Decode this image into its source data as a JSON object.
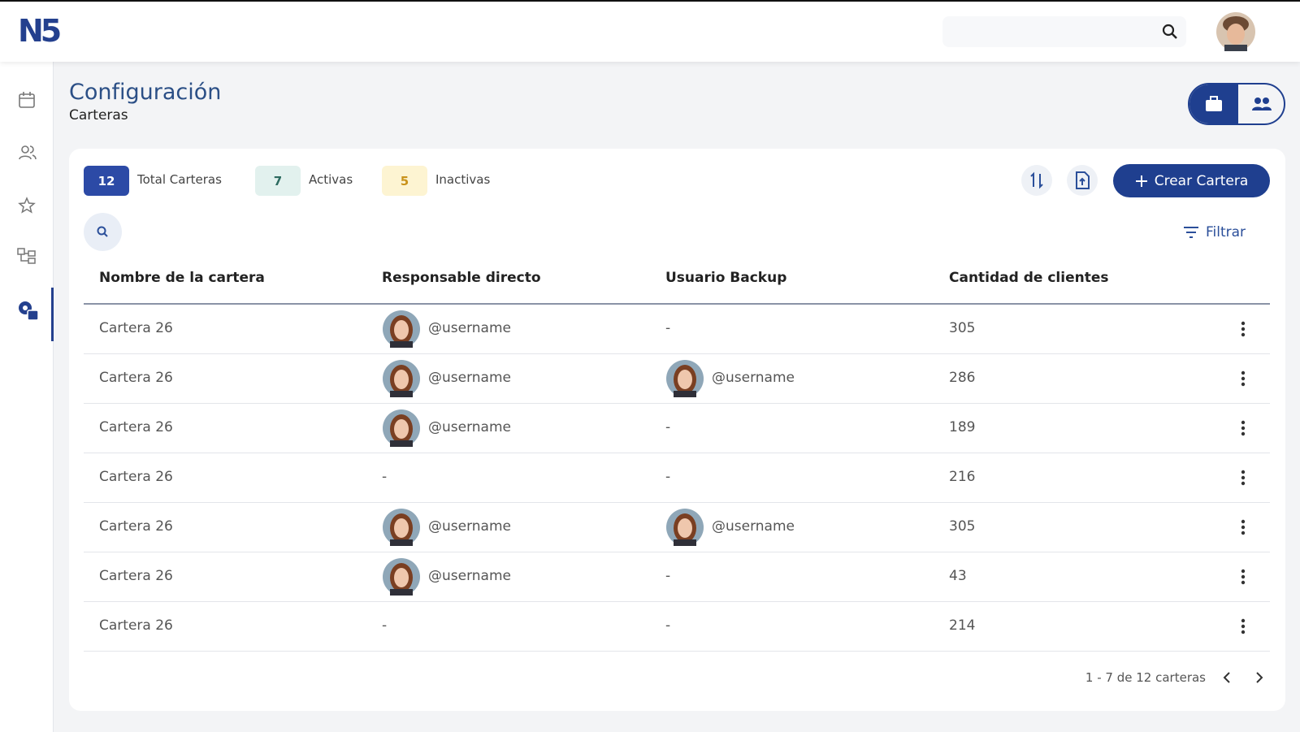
{
  "header": {
    "logo": "N5"
  },
  "page": {
    "title": "Configuración",
    "subtitle": "Carteras"
  },
  "stats": [
    {
      "count": 12,
      "label": "Total Carteras"
    },
    {
      "count": 7,
      "label": "Activas"
    },
    {
      "count": 5,
      "label": "Inactivas"
    }
  ],
  "actions": {
    "create": "Crear Cartera",
    "filter": "Filtrar"
  },
  "table": {
    "columns": [
      "Nombre de la cartera",
      "Responsable directo",
      "Usuario Backup",
      "Cantidad de clientes"
    ],
    "rows": [
      [
        "Cartera 26",
        "@username",
        "-",
        305
      ],
      [
        "Cartera 26",
        "@username",
        "@username",
        286
      ],
      [
        "Cartera 26",
        "@username",
        "-",
        189
      ],
      [
        "Cartera 26",
        "-",
        "-",
        216
      ],
      [
        "Cartera 26",
        "@username",
        "@username",
        305
      ],
      [
        "Cartera 26",
        "@username",
        "-",
        43
      ],
      [
        "Cartera 26",
        "-",
        "-",
        214
      ]
    ]
  },
  "pagination": "1 - 7 de 12 carteras"
}
